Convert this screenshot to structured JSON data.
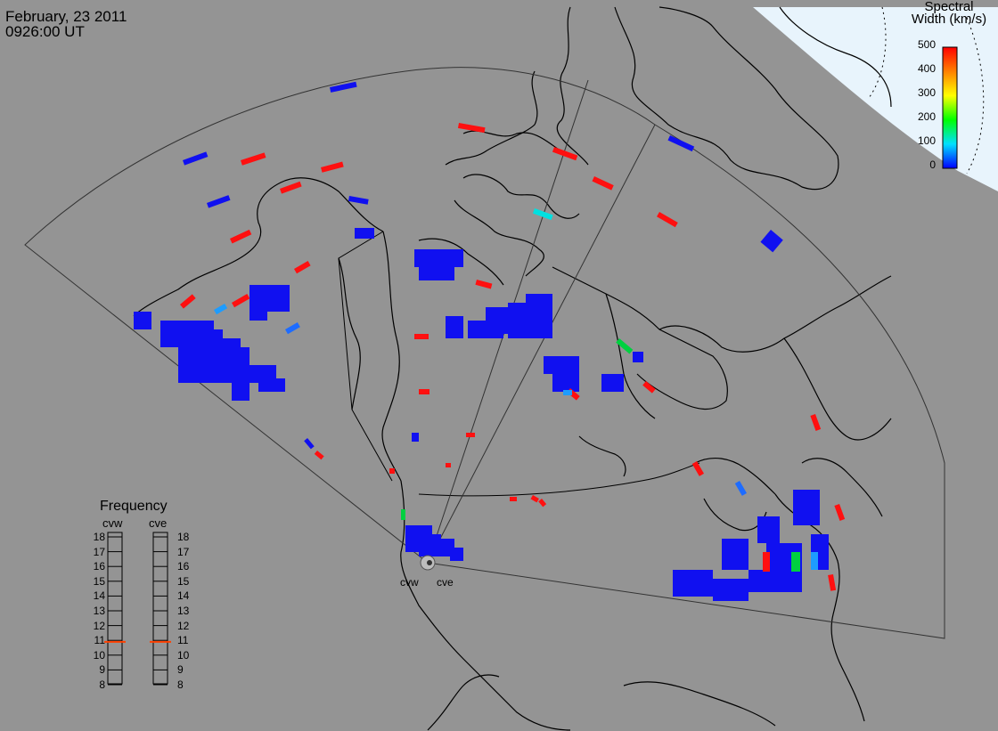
{
  "header": {
    "date": "February, 23 2011",
    "time": "0926:00 UT"
  },
  "colorbar": {
    "title_line1": "Spectral",
    "title_line2": "Width (km/s)",
    "ticks": [
      "500",
      "400",
      "300",
      "200",
      "100",
      "0"
    ],
    "min": 0,
    "max": 500
  },
  "frequency_panel": {
    "title": "Frequency",
    "radars": [
      "cvw",
      "cve"
    ],
    "scale_labels": [
      "18",
      "17",
      "16",
      "15",
      "14",
      "13",
      "12",
      "11",
      "10",
      "9",
      "8"
    ],
    "cvw_mhz": 10.9,
    "cve_mhz": 10.9,
    "marker_color": "#ff4000"
  },
  "stations": [
    "cvw",
    "cve"
  ],
  "colors": {
    "background": "#949494",
    "land_line": "#000000",
    "polar_cap": "#e8f4fc",
    "low_width": "#0000ff",
    "high_width": "#ff0000"
  }
}
